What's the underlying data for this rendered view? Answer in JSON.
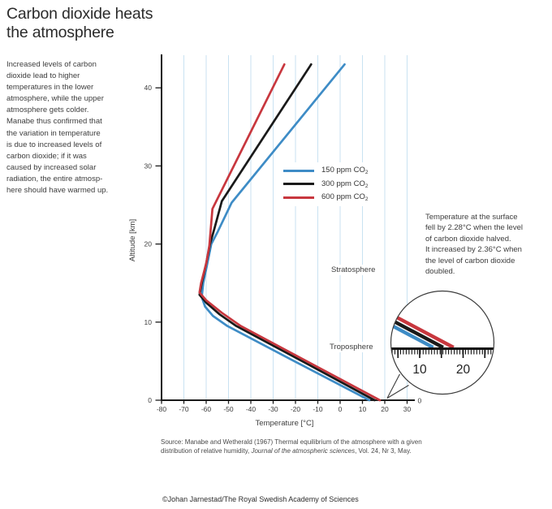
{
  "title": "Carbon dioxide heats\nthe atmosphere",
  "intro": "Increased levels of carbon\ndioxide lead to higher\ntemperatures in the lower\natmosphere, while the upper\natmosphere gets colder.\nManabe thus confirmed that\nthe variation in temperature\nis due to increased levels of\ncarbon dioxide; if it was\ncaused by increased solar\nradiation, the entire atmosp-\nhere should have warmed up.",
  "labels": {
    "stratosphere": "Stratosphere",
    "troposphere": "Troposphere"
  },
  "surface_note": "Temperature at the surface\nfell by 2.28°C when the level\nof carbon dioxide halved.\nIt increased by 2.36°C when\nthe level of carbon dioxide\ndoubled.",
  "source": {
    "line1": "Source: Manabe and Wetherald (1967) Thermal equilibrium of the atmosphere with a given",
    "line2_pre": "distribution of relative humidity, ",
    "line2_italic": "Journal of the atmospheric sciences",
    "line2_post": ", Vol. 24, Nr 3, May."
  },
  "copyright": "©Johan Jarnestad/The Royal Swedish Academy of Sciences",
  "chart_data": {
    "type": "line",
    "title": "Carbon dioxide heats the atmosphere",
    "xlabel": "Temperature [°C]",
    "ylabel": "Altitude [km]",
    "xlim": [
      -80,
      30
    ],
    "ylim": [
      0,
      44.5
    ],
    "x_ticks": [
      -80,
      -70,
      -60,
      -50,
      -40,
      -30,
      -20,
      -10,
      0,
      10,
      20,
      30
    ],
    "y_ticks": [
      0,
      10,
      20,
      30,
      40
    ],
    "gridlines_x": [
      -70,
      -60,
      -50,
      -40,
      -30,
      -20,
      -10,
      0,
      10,
      20,
      30
    ],
    "grid": "on",
    "legend_position": "right-upper",
    "right_axis_zero_label": "0",
    "colors": {
      "grid": "#C9E2F2",
      "axis": "#1A1A1A",
      "inset_stroke": "#3C3C3C",
      "ruler": "#111111"
    },
    "series": [
      {
        "name": "150 ppm CO2",
        "label_base": "150 ppm CO",
        "label_sub": "2",
        "color": "#3E8CC6",
        "surface_temp_c": 13.1,
        "points": [
          [
            13.1,
            0
          ],
          [
            -20.5,
            5
          ],
          [
            -50.5,
            9.5
          ],
          [
            -57,
            10.8
          ],
          [
            -60.5,
            12
          ],
          [
            -62,
            13.2
          ],
          [
            -61.3,
            15
          ],
          [
            -59.5,
            17.5
          ],
          [
            -57.7,
            20
          ],
          [
            -54.8,
            21.6
          ],
          [
            -48.6,
            25.3
          ],
          [
            2,
            43
          ]
        ]
      },
      {
        "name": "300 ppm CO2",
        "label_base": "300 ppm CO",
        "label_sub": "2",
        "color": "#1A1A1A",
        "surface_temp_c": 15.4,
        "points": [
          [
            15.4,
            0
          ],
          [
            -17,
            5
          ],
          [
            -46.5,
            9.5
          ],
          [
            -54,
            11
          ],
          [
            -60,
            12.5
          ],
          [
            -63,
            13.5
          ],
          [
            -62,
            15
          ],
          [
            -60,
            17.5
          ],
          [
            -58.3,
            20
          ],
          [
            -56.3,
            22
          ],
          [
            -53,
            25.5
          ],
          [
            -13,
            43
          ]
        ]
      },
      {
        "name": "600 ppm CO2",
        "label_base": "600 ppm CO",
        "label_sub": "2",
        "color": "#C8373E",
        "surface_temp_c": 17.8,
        "points": [
          [
            17.8,
            0
          ],
          [
            -15,
            5
          ],
          [
            -44.5,
            9.5
          ],
          [
            -53,
            11.2
          ],
          [
            -60,
            12.8
          ],
          [
            -63,
            13.8
          ],
          [
            -62.3,
            15
          ],
          [
            -60,
            17.5
          ],
          [
            -58.6,
            19.8
          ],
          [
            -57.2,
            24.5
          ],
          [
            -25,
            43
          ]
        ]
      }
    ],
    "inset": {
      "description": "magnified surface temperatures",
      "ruler_unit": "°C",
      "ruler_range": [
        3,
        27.5
      ],
      "minor_step": 0.65,
      "major_ticks": [
        5,
        10,
        15,
        20,
        25
      ],
      "labels": [
        10,
        20
      ]
    }
  }
}
